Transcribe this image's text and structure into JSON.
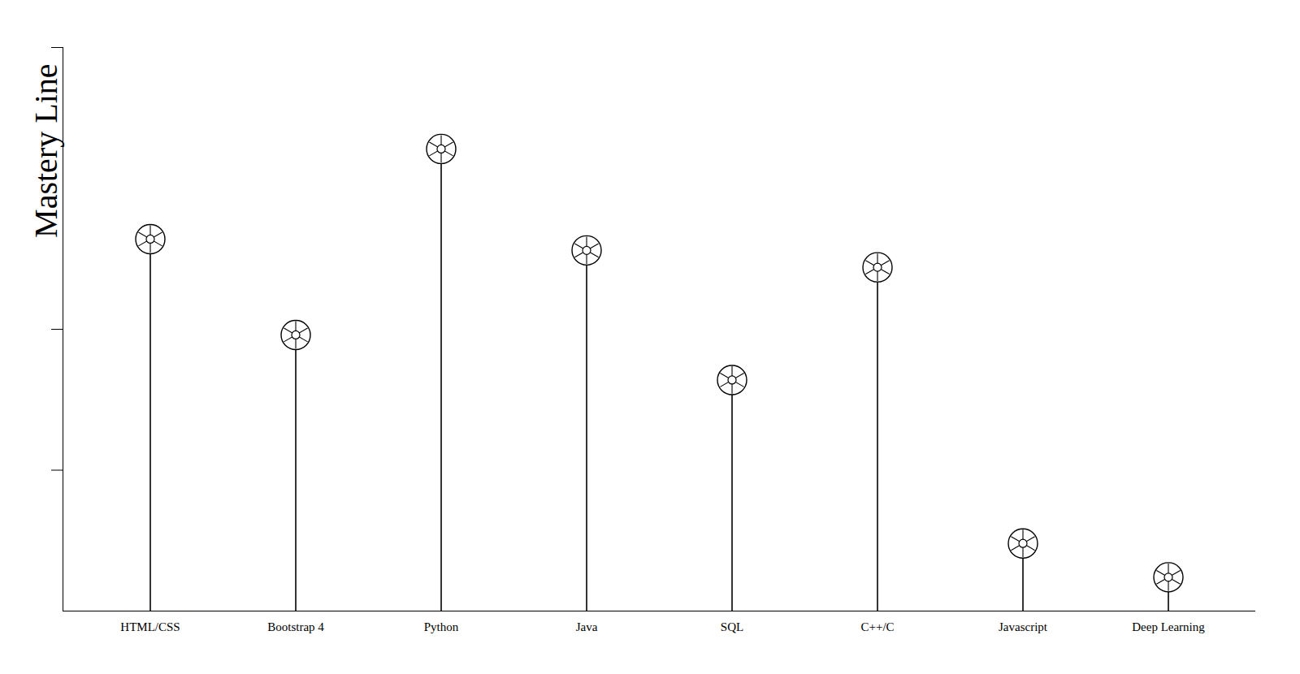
{
  "chart_data": {
    "type": "lollipop",
    "categories": [
      "HTML/CSS",
      "Bootstrap 4",
      "Python",
      "Java",
      "SQL",
      "C++/C",
      "Javascript",
      "Deep Learning"
    ],
    "values": [
      66,
      49,
      82,
      64,
      41,
      61,
      12,
      6
    ],
    "color": "#000000",
    "ylim": [
      0,
      100
    ],
    "yticks": [
      25,
      50,
      100
    ],
    "y_label": "Mastery Line",
    "tick_labels": "x"
  }
}
